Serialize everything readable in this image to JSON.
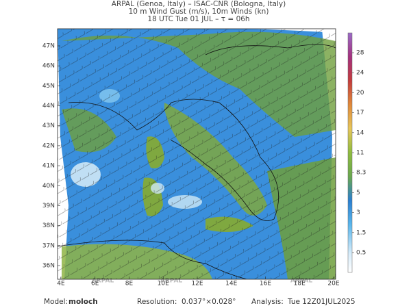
{
  "header": {
    "lines": [
      "ARPAL (Genoa, Italy)  –  ISAC-CNR (Bologna, Italy)",
      "10 m Wind Gust (m/s), 10m Winds (kn)",
      "18 UTC Tue 01 JUL  –  τ = 06h"
    ]
  },
  "map": {
    "lat_labels": [
      "47N",
      "46N",
      "45N",
      "44N",
      "43N",
      "42N",
      "41N",
      "40N",
      "39N",
      "38N",
      "37N",
      "36N"
    ],
    "lon_labels": [
      "4E",
      "6E",
      "8E",
      "10E",
      "12E",
      "14E",
      "16E",
      "18E",
      "20E"
    ],
    "watermark": "ARPAL"
  },
  "colorbar": {
    "ticks": [
      0.5,
      1.5,
      3,
      5,
      8.3,
      11,
      14,
      17,
      20,
      24,
      28
    ]
  },
  "footer": {
    "model_label": "Model:",
    "model": "moloch",
    "resolution_label": "Resolution:",
    "resolution": "0.037°×0.028°",
    "analysis_label": "Analysis:",
    "analysis": "Tue 12Z01JUL2025"
  }
}
